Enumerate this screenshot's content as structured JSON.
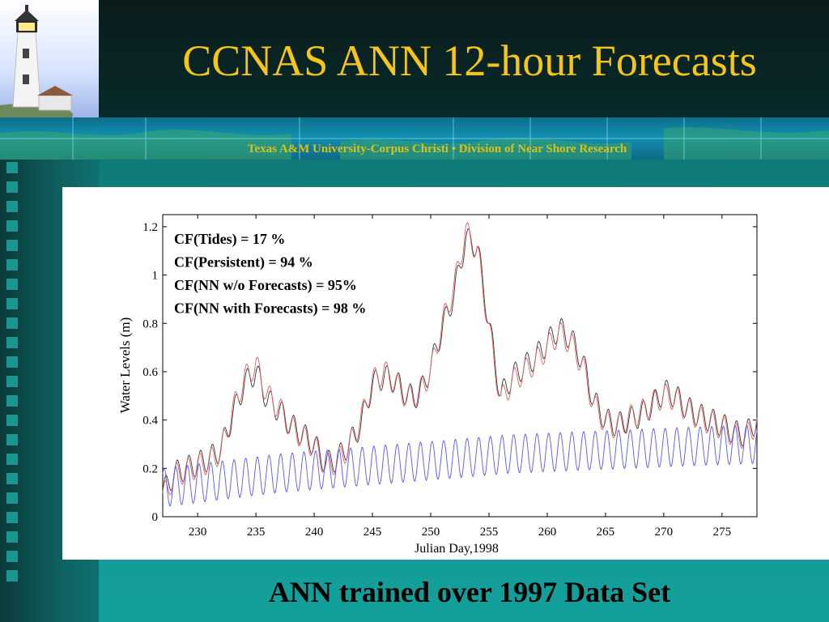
{
  "slide": {
    "title": "CCNAS ANN 12-hour Forecasts",
    "subtitle": "Texas A&M University-Corpus Christi • Division of Near Shore Research",
    "caption": "ANN trained over 1997 Data Set"
  },
  "colors": {
    "title": "#f5c518",
    "subtitle": "#d8c21c",
    "series_observed": "#333333",
    "series_nn": "#e06060",
    "series_tides": "#5555ff"
  },
  "chart_data": {
    "type": "line",
    "title": "",
    "xlabel": "Julian Day,1998",
    "ylabel": "Water Levels (m)",
    "xlim": [
      227,
      278
    ],
    "ylim": [
      0,
      1.25
    ],
    "xticks": [
      230,
      235,
      240,
      245,
      250,
      255,
      260,
      265,
      270,
      275
    ],
    "yticks": [
      0,
      0.2,
      0.4,
      0.6,
      0.8,
      1,
      1.2
    ],
    "ytick_labels": [
      "0",
      "0.2",
      "0.4",
      "0.6",
      "0.8",
      "1",
      "1.2"
    ],
    "annotations": [
      "CF(Tides) = 17 %",
      "CF(Persistent) = 94 %",
      "CF(NN w/o Forecasts) = 95%",
      "CF(NN with Forecasts) = 98 %"
    ],
    "grid": false,
    "series": [
      {
        "key": "observed",
        "x": [
          227,
          228,
          229,
          230,
          231,
          232,
          233,
          234,
          235,
          236,
          237,
          238,
          239,
          240,
          241,
          242,
          243,
          244,
          245,
          246,
          247,
          248,
          249,
          250,
          251,
          252,
          253,
          254,
          255,
          256,
          257,
          258,
          259,
          260,
          261,
          262,
          263,
          264,
          265,
          266,
          267,
          268,
          269,
          270,
          271,
          272,
          273,
          274,
          275,
          276,
          277,
          278
        ],
        "y": [
          0.1,
          0.18,
          0.2,
          0.22,
          0.24,
          0.28,
          0.42,
          0.55,
          0.6,
          0.48,
          0.44,
          0.38,
          0.34,
          0.3,
          0.22,
          0.24,
          0.3,
          0.38,
          0.55,
          0.58,
          0.56,
          0.5,
          0.5,
          0.62,
          0.78,
          0.92,
          1.15,
          1.12,
          0.8,
          0.5,
          0.58,
          0.62,
          0.66,
          0.72,
          0.78,
          0.74,
          0.65,
          0.48,
          0.4,
          0.38,
          0.4,
          0.42,
          0.46,
          0.52,
          0.5,
          0.45,
          0.42,
          0.4,
          0.38,
          0.35,
          0.34,
          0.4
        ]
      },
      {
        "key": "nn",
        "x": [
          227,
          228,
          229,
          230,
          231,
          232,
          233,
          234,
          235,
          236,
          237,
          238,
          239,
          240,
          241,
          242,
          243,
          244,
          245,
          246,
          247,
          248,
          249,
          250,
          251,
          252,
          253,
          254,
          255,
          256,
          257,
          258,
          259,
          260,
          261,
          262,
          263,
          264,
          265,
          266,
          267,
          268,
          269,
          270,
          271,
          272,
          273,
          274,
          275,
          276,
          277,
          278
        ],
        "y": [
          0.08,
          0.17,
          0.19,
          0.21,
          0.23,
          0.27,
          0.44,
          0.57,
          0.63,
          0.5,
          0.45,
          0.37,
          0.33,
          0.29,
          0.21,
          0.23,
          0.29,
          0.4,
          0.56,
          0.6,
          0.55,
          0.49,
          0.51,
          0.6,
          0.8,
          0.95,
          1.18,
          1.1,
          0.78,
          0.48,
          0.56,
          0.6,
          0.64,
          0.7,
          0.76,
          0.72,
          0.63,
          0.46,
          0.39,
          0.37,
          0.41,
          0.43,
          0.47,
          0.5,
          0.49,
          0.44,
          0.41,
          0.39,
          0.37,
          0.34,
          0.33,
          0.39
        ]
      },
      {
        "key": "tides",
        "x": [
          227,
          232,
          237,
          242,
          247,
          252,
          257,
          262,
          267,
          272,
          278
        ],
        "y": [
          0.12,
          0.15,
          0.18,
          0.2,
          0.22,
          0.24,
          0.26,
          0.27,
          0.28,
          0.29,
          0.3
        ],
        "amplitude": 0.08
      }
    ]
  }
}
